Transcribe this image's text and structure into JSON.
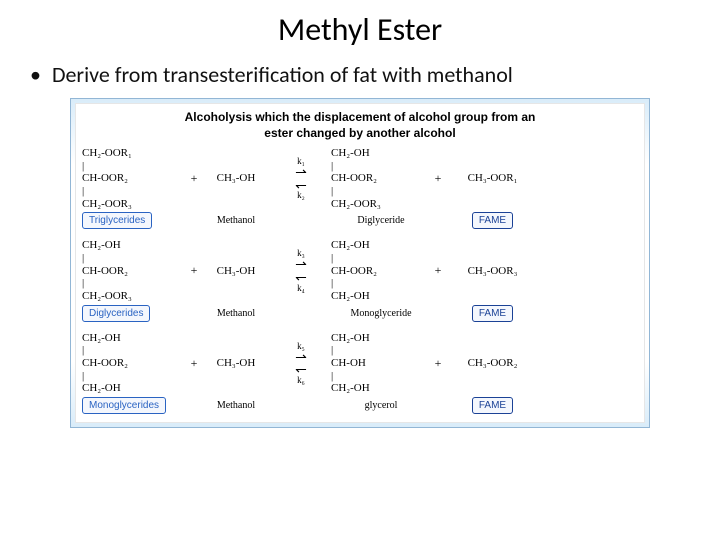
{
  "title": "Methyl Ester",
  "bullet": "Derive from transesterification of fat with methanol",
  "diagram": {
    "heading_l1": "Alcoholysis which the displacement of alcohol group from an",
    "heading_l2": "ester changed by another alcohol",
    "colors": {
      "blue": "#2a63c2",
      "navy": "#1b4296",
      "gradient_edge": "#d9ecf9",
      "border": "#92b6d5"
    },
    "rows": [
      {
        "reactant1": "CH₂-OOR₁\n|\nCH-OOR₂\n|\nCH₂-OOR₃",
        "reactant2": "CH₃-OH",
        "k_top": "k₁",
        "k_bot": "k₂",
        "product1": "CH₂-OH\n|\nCH-OOR₂\n|\nCH₂-OOR₃",
        "product2": "CH₃-OOR₁",
        "label_left": "Triglycerides",
        "label_r2": "Methanol",
        "label_p1": "Diglyceride",
        "label_right": "FAME"
      },
      {
        "reactant1": "CH₂-OH\n|\nCH-OOR₂\n|\nCH₂-OOR₃",
        "reactant2": "CH₃-OH",
        "k_top": "k₃",
        "k_bot": "k₄",
        "product1": "CH₂-OH\n|\nCH-OOR₂\n|\nCH₂-OH",
        "product2": "CH₃-OOR₃",
        "label_left": "Diglycerides",
        "label_r2": "Methanol",
        "label_p1": "Monoglyceride",
        "label_right": "FAME"
      },
      {
        "reactant1": "CH₂-OH\n|\nCH-OOR₂\n|\nCH₂-OH",
        "reactant2": "CH₃-OH",
        "k_top": "k₅",
        "k_bot": "k₆",
        "product1": "CH₂-OH\n|\nCH-OH\n|\nCH₂-OH",
        "product2": "CH₃-OOR₂",
        "label_left": "Monoglycerides",
        "label_r2": "Methanol",
        "label_p1": "glycerol",
        "label_right": "FAME"
      }
    ],
    "plus": "+",
    "arrow_right": "⇀",
    "arrow_left": "↽"
  }
}
